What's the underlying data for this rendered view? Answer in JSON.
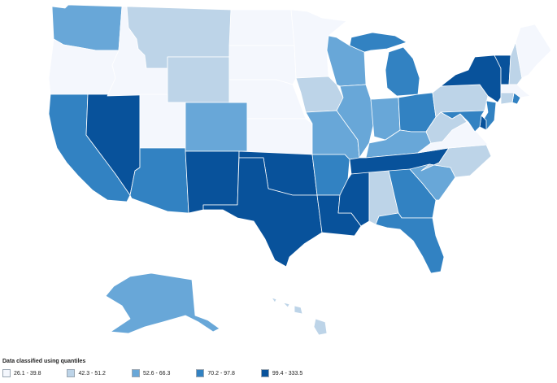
{
  "legend": {
    "title": "Data classified using quantiles",
    "classes": [
      {
        "label": "26.1 - 39.8",
        "color": "#f4f7fd"
      },
      {
        "label": "42.3 - 51.2",
        "color": "#bdd4e8"
      },
      {
        "label": "52.6 - 66.3",
        "color": "#68a7d8"
      },
      {
        "label": "70.2 - 97.8",
        "color": "#3282c2"
      },
      {
        "label": "99.4 - 333.5",
        "color": "#08529b"
      }
    ]
  },
  "states": {
    "WA": 2,
    "OR": 0,
    "CA": 3,
    "NV": 4,
    "ID": 0,
    "MT": 1,
    "WY": 1,
    "UT": 0,
    "AZ": 3,
    "CO": 2,
    "NM": 4,
    "ND": 0,
    "SD": 0,
    "NE": 0,
    "KS": 0,
    "OK": 4,
    "TX": 4,
    "MN": 0,
    "IA": 1,
    "MO": 2,
    "AR": 3,
    "LA": 4,
    "WI": 2,
    "IL": 2,
    "MI": 3,
    "IN": 2,
    "OH": 3,
    "KY": 2,
    "TN": 4,
    "MS": 4,
    "AL": 1,
    "GA": 3,
    "FL": 3,
    "SC": 2,
    "NC": 1,
    "VA": 0,
    "WV": 1,
    "PA": 1,
    "NY": 4,
    "VT": 4,
    "NH": 1,
    "ME": 0,
    "MA": 0,
    "RI": 3,
    "CT": 1,
    "NJ": 3,
    "DE": 4,
    "MD": 3,
    "AK": 2,
    "HI": 1
  }
}
